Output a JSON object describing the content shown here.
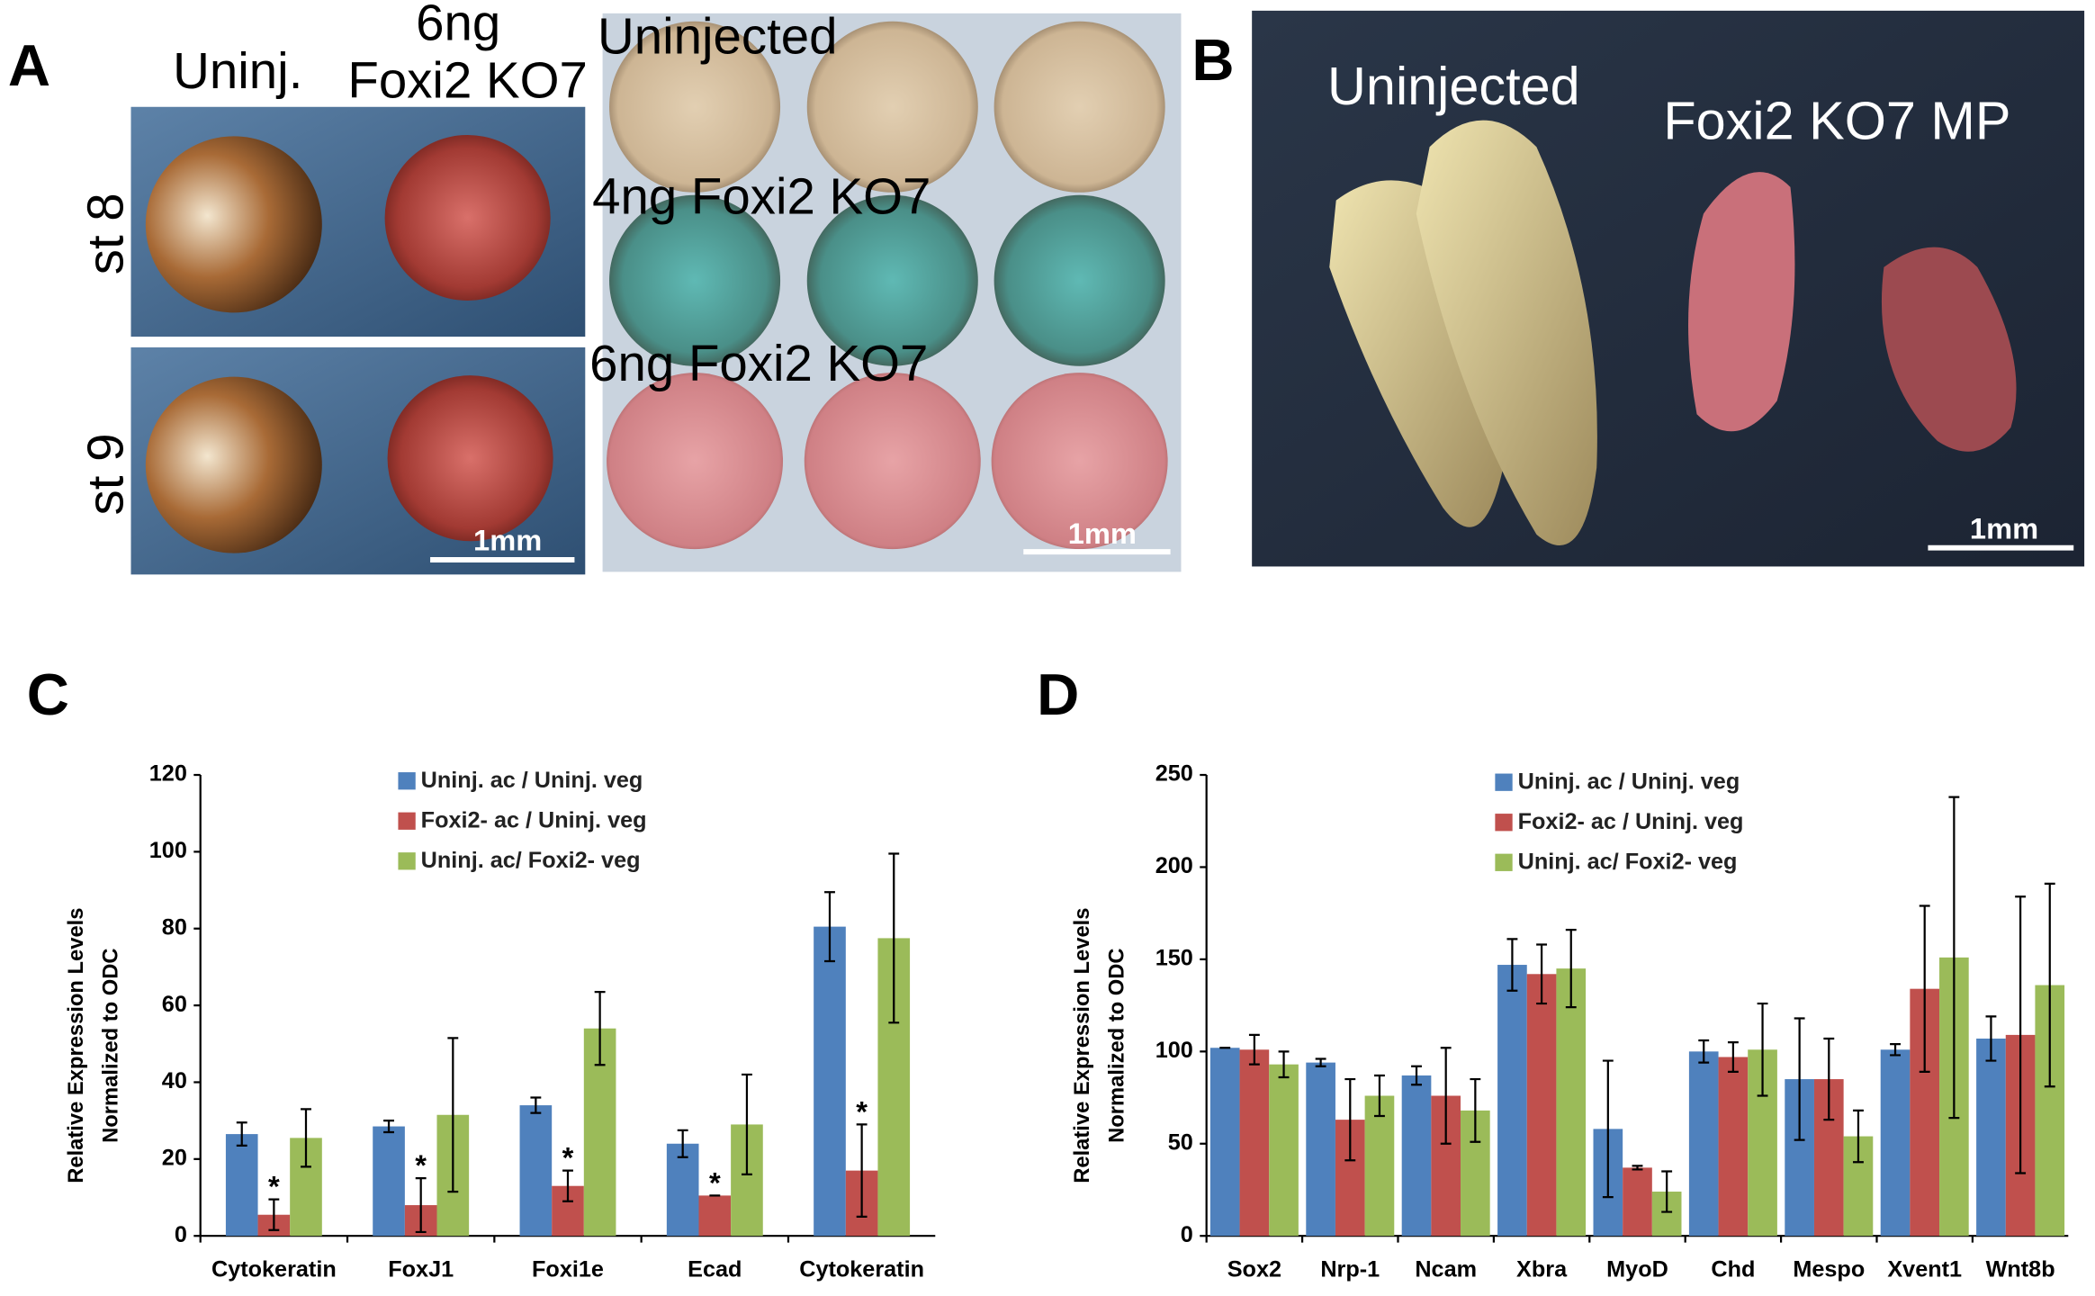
{
  "panel_labels": [
    "A",
    "B",
    "C",
    "D"
  ],
  "panel_a": {
    "column_labels": [
      "Uninj.",
      "6ng",
      "Foxi2 KO7"
    ],
    "row_labels": [
      "st 8",
      "st 9"
    ],
    "scale_bar": "1mm",
    "plate_labels": [
      "Uninjected",
      "4ng Foxi2 KO7",
      "6ng Foxi2 KO7"
    ],
    "plate_scale_bar": "1mm"
  },
  "panel_b": {
    "labels": [
      "Uninjected",
      "Foxi2 KO7 MP"
    ],
    "scale_bar": "1mm"
  },
  "chart_data": [
    {
      "type": "bar",
      "ylabel": [
        "Relative Expression Levels",
        "Normalized to ODC"
      ],
      "categories": [
        "Cytokeratin",
        "FoxJ1",
        "Foxi1e",
        "Ecad",
        "Cytokeratin"
      ],
      "series": [
        {
          "name": "Uninj. ac / Uninj. veg",
          "color": "#4f81bd",
          "values": [
            26.5,
            28.5,
            34,
            24,
            80.5
          ],
          "errors": [
            3,
            1.5,
            2,
            3.5,
            9
          ]
        },
        {
          "name": "Foxi2- ac / Uninj. veg",
          "color": "#c0504d",
          "values": [
            5.5,
            8,
            13,
            10.5,
            17
          ],
          "errors": [
            4,
            7,
            4,
            0,
            12
          ]
        },
        {
          "name": "Uninj. ac/ Foxi2- veg",
          "color": "#9bbb59",
          "values": [
            25.5,
            31.5,
            54,
            29,
            77.5
          ],
          "errors": [
            7.5,
            20,
            9.5,
            13,
            22
          ]
        }
      ],
      "significance": [
        "*",
        "*",
        "*",
        "*",
        "*"
      ],
      "ylim": [
        0,
        120
      ],
      "yticks": [
        0,
        20,
        40,
        60,
        80,
        100,
        120
      ]
    },
    {
      "type": "bar",
      "ylabel": [
        "Relative Expression Levels",
        "Normalized to ODC"
      ],
      "categories": [
        "Sox2",
        "Nrp-1",
        "Ncam",
        "Xbra",
        "MyoD",
        "Chd",
        "Mespo",
        "Xvent1",
        "Wnt8b"
      ],
      "series": [
        {
          "name": "Uninj. ac / Uninj. veg",
          "color": "#4f81bd",
          "values": [
            102,
            94,
            87,
            147,
            58,
            100,
            85,
            101,
            107
          ],
          "errors": [
            0,
            2,
            5,
            14,
            37,
            6,
            33,
            3,
            12
          ]
        },
        {
          "name": "Foxi2- ac / Uninj. veg",
          "color": "#c0504d",
          "values": [
            101,
            63,
            76,
            142,
            37,
            97,
            85,
            134,
            109
          ],
          "errors": [
            8,
            22,
            26,
            16,
            1,
            8,
            22,
            45,
            75
          ]
        },
        {
          "name": "Uninj. ac/ Foxi2- veg",
          "color": "#9bbb59",
          "values": [
            93,
            76,
            68,
            145,
            24,
            101,
            54,
            151,
            136
          ],
          "errors": [
            7,
            11,
            17,
            21,
            11,
            25,
            14,
            87,
            55
          ]
        }
      ],
      "ylim": [
        0,
        250
      ],
      "yticks": [
        0,
        50,
        100,
        150,
        200,
        250
      ]
    }
  ]
}
